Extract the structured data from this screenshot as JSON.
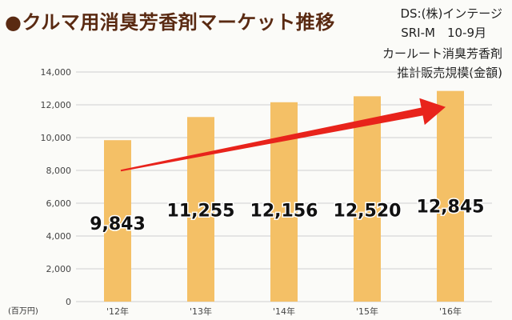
{
  "title": "●クルマ用消臭芳香剤マーケット推移",
  "notes": [
    "DS:(株)インテージ",
    "SRI-M　10-9月",
    "カールート消臭芳香剤",
    "推計販売規模(金額)"
  ],
  "unit_label": "(百万円)",
  "colors": {
    "bar": "#f4c066",
    "arrow": "#e8231b",
    "title": "#5a2a12"
  },
  "chart_data": {
    "type": "bar",
    "title": "クルマ用消臭芳香剤マーケット推移",
    "categories": [
      "'12年",
      "'13年",
      "'14年",
      "'15年",
      "'16年"
    ],
    "values": [
      9843,
      11255,
      12156,
      12520,
      12845
    ],
    "value_labels": [
      "9,843",
      "11,255",
      "12,156",
      "12,520",
      "12,845"
    ],
    "ylabel": "(百万円)",
    "ylim": [
      0,
      14000
    ],
    "yticks": [
      0,
      2000,
      4000,
      6000,
      8000,
      10000,
      12000,
      14000
    ],
    "ytick_labels": [
      "0",
      "2,000",
      "4,000",
      "6,000",
      "8,000",
      "10,000",
      "12,000",
      "14,000"
    ],
    "grid": true,
    "annotation": "trend arrow from '12年 to '16年"
  }
}
